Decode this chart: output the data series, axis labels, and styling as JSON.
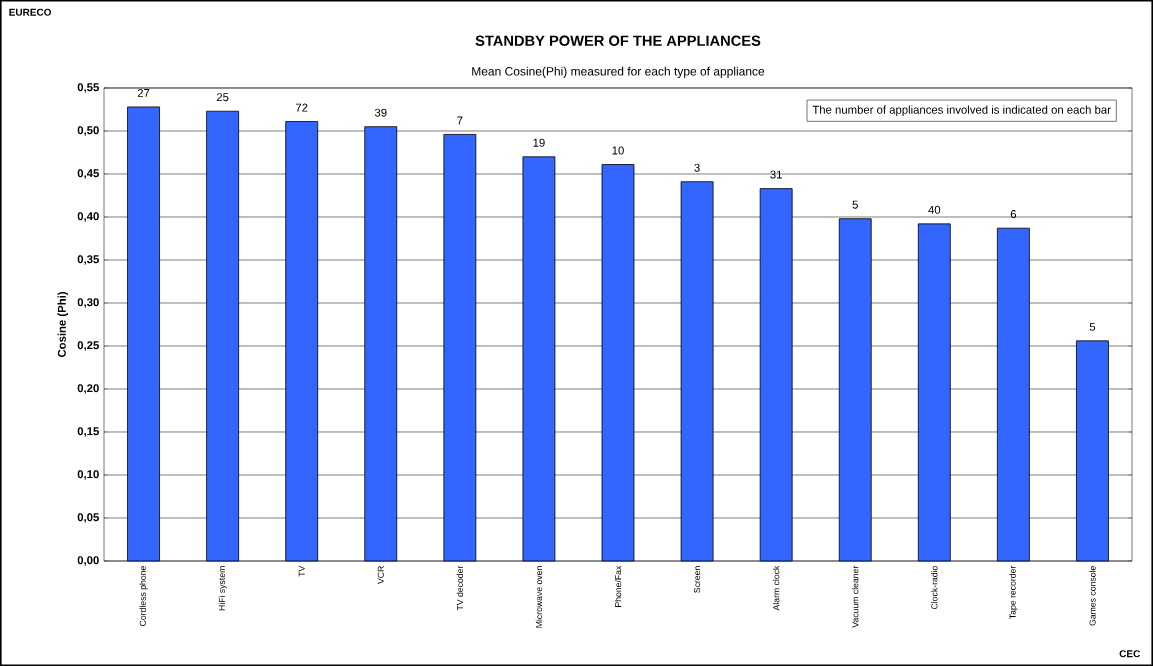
{
  "chart_data": {
    "type": "bar",
    "title": "STANDBY POWER OF THE APPLIANCES",
    "subtitle": "Mean Cosine(Phi) measured for each type of appliance",
    "ylabel": "Cosine (Phi)",
    "categories": [
      "Cordless phone",
      "HiFi  system",
      "TV",
      "VCR",
      "TV decoder",
      "Microwave oven",
      "Phone/Fax",
      "Screen",
      "Alarm clock",
      "Vacuum cleaner",
      "Clock-radio",
      "Tape recorder",
      "Games console"
    ],
    "values": [
      0.528,
      0.523,
      0.511,
      0.505,
      0.496,
      0.47,
      0.461,
      0.441,
      0.433,
      0.398,
      0.392,
      0.387,
      0.256
    ],
    "color": "#3366ff",
    "ylim": [
      0,
      0.55
    ],
    "yticks": [
      {
        "value": 0,
        "label": "0,00"
      },
      {
        "value": 0.05,
        "label": "0,05"
      },
      {
        "value": 0.1,
        "label": "0,10"
      },
      {
        "value": 0.15,
        "label": "0,15"
      },
      {
        "value": 0.2,
        "label": "0,20"
      },
      {
        "value": 0.25,
        "label": "0,25"
      },
      {
        "value": 0.3,
        "label": "0,30"
      },
      {
        "value": 0.35,
        "label": "0,35"
      },
      {
        "value": 0.4,
        "label": "0,40"
      },
      {
        "value": 0.45,
        "label": "0,45"
      },
      {
        "value": 0.5,
        "label": "0,50"
      },
      {
        "value": 0.55,
        "label": "0,55"
      }
    ],
    "grid": "y",
    "annotations": [
      "The number of appliances involved is indicated on each bar",
      "EURECO",
      "CEC",
      {
        "text": "27",
        "x": "Cordless phone",
        "y": 0.528
      },
      {
        "text": "25",
        "x": "HiFi  system",
        "y": 0.523
      },
      {
        "text": "72",
        "x": "TV",
        "y": 0.511
      },
      {
        "text": "39",
        "x": "VCR",
        "y": 0.505
      },
      {
        "text": "7",
        "x": "TV decoder",
        "y": 0.496
      },
      {
        "text": "19",
        "x": "Microwave oven",
        "y": 0.47
      },
      {
        "text": "10",
        "x": "Phone/Fax",
        "y": 0.461
      },
      {
        "text": "3",
        "x": "Screen",
        "y": 0.441
      },
      {
        "text": "31",
        "x": "Alarm clock",
        "y": 0.433
      },
      {
        "text": "5",
        "x": "Vacuum cleaner",
        "y": 0.398
      },
      {
        "text": "40",
        "x": "Clock-radio",
        "y": 0.392
      },
      {
        "text": "6",
        "x": "Tape recorder",
        "y": 0.387
      },
      {
        "text": "5",
        "x": "Games console",
        "y": 0.256
      }
    ]
  }
}
